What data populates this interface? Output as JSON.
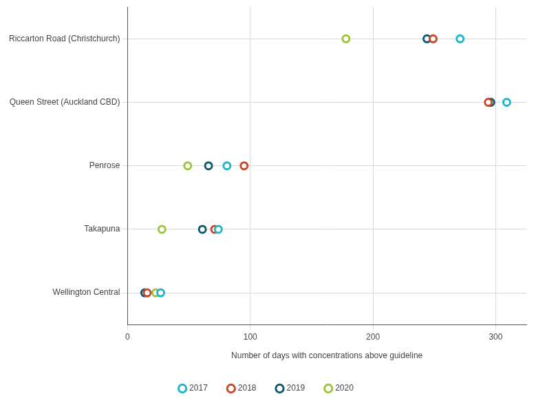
{
  "chart_data": {
    "type": "dot",
    "x_label": "Number of days with concentrations above guideline",
    "categories": [
      "Riccarton Road (Christchurch)",
      "Queen Street (Auckland CBD)",
      "Penrose",
      "Takapuna",
      "Wellington Central"
    ],
    "series": [
      {
        "name": "2017",
        "color": "#22b5c8",
        "values": [
          271,
          309,
          81,
          74,
          27
        ]
      },
      {
        "name": "2018",
        "color": "#c9472c",
        "values": [
          249,
          294,
          95,
          71,
          16
        ]
      },
      {
        "name": "2019",
        "color": "#0f5a72",
        "values": [
          244,
          296,
          66,
          61,
          14
        ]
      },
      {
        "name": "2020",
        "color": "#9cc63f",
        "values": [
          178,
          296,
          49,
          28,
          23
        ]
      }
    ],
    "xlim": [
      0,
      325
    ],
    "xticks": [
      0,
      100,
      200,
      300
    ],
    "grid": true,
    "legend": "bottom",
    "orientation": "horizontal",
    "marker": "circle"
  }
}
